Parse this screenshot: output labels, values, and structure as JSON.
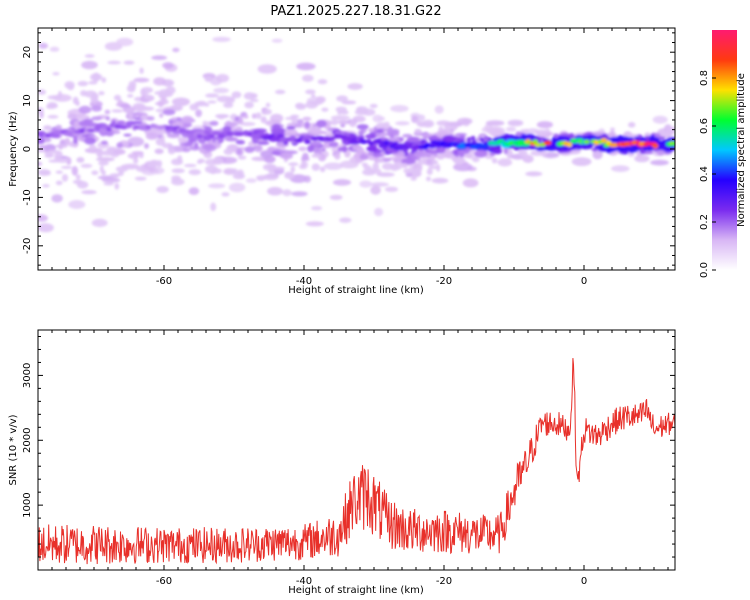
{
  "title": "PAZ1.2025.227.18.31.G22",
  "colormap": [
    "#ffffff",
    "#d8b6f5",
    "#7a2bef",
    "#2500ff",
    "#00c8ff",
    "#00ff30",
    "#ffe000",
    "#ff3a10",
    "#ff1a70"
  ],
  "chart_data": [
    {
      "type": "heatmap",
      "xlabel": "Height of straight line (km)",
      "ylabel": "Frequency (Hz)",
      "xlim": [
        -78,
        13
      ],
      "ylim": [
        -25,
        25
      ],
      "xticks": [
        "-60",
        "-40",
        "-20",
        "0"
      ],
      "yticks": [
        "-20",
        "-10",
        "0",
        "10",
        "20"
      ],
      "ridge": {
        "x": [
          -76,
          -70,
          -65,
          -60,
          -55,
          -50,
          -45,
          -40,
          -35,
          -30,
          -25,
          -20,
          -15,
          -10,
          -5,
          0,
          5,
          10,
          13
        ],
        "freq": [
          3,
          4,
          5,
          4.5,
          3,
          3.2,
          2.5,
          2,
          2.5,
          1.5,
          0,
          1,
          0.5,
          1.5,
          1,
          1.5,
          1,
          1,
          1
        ],
        "spread": [
          6,
          6,
          6,
          5.5,
          5,
          5,
          4.5,
          4,
          3.5,
          3,
          2.5,
          2,
          1.5,
          1,
          1,
          1,
          1,
          1,
          1
        ],
        "intensity": [
          0.2,
          0.2,
          0.2,
          0.2,
          0.2,
          0.2,
          0.25,
          0.25,
          0.25,
          0.3,
          0.3,
          0.35,
          0.45,
          0.6,
          0.9,
          0.6,
          0.95,
          0.95,
          0.6
        ]
      },
      "colorbar": {
        "label": "Normalized spectral amplitude",
        "range": [
          0,
          1
        ],
        "ticks": [
          "0.0",
          "0.2",
          "0.4",
          "0.6",
          "0.8"
        ]
      }
    },
    {
      "type": "line",
      "xlabel": "Height of straight line (km)",
      "ylabel": "SNR (10 * v/v)",
      "xlim": [
        -78,
        13
      ],
      "ylim": [
        0,
        3700
      ],
      "xticks": [
        "-60",
        "-40",
        "-20",
        "0"
      ],
      "yticks": [
        "1000",
        "2000",
        "3000"
      ],
      "series": [
        {
          "color": "#e8302a",
          "x": [
            -78,
            -70,
            -60,
            -50,
            -40,
            -35,
            -33,
            -31,
            -28,
            -25,
            -20,
            -15,
            -12,
            -10,
            -8,
            -6,
            -4,
            -2,
            -1.5,
            -1,
            0,
            2,
            4,
            6,
            8,
            9,
            10,
            12,
            13
          ],
          "baseline": [
            300,
            300,
            300,
            300,
            350,
            450,
            900,
            1000,
            600,
            500,
            500,
            450,
            450,
            1100,
            1600,
            2200,
            2200,
            2100,
            3200,
            1200,
            2100,
            2000,
            2200,
            2300,
            2300,
            2400,
            2100,
            2200,
            2200
          ],
          "noise": [
            450,
            450,
            400,
            400,
            400,
            500,
            700,
            800,
            600,
            500,
            500,
            450,
            450,
            500,
            400,
            300,
            300,
            250,
            300,
            300,
            300,
            300,
            300,
            300,
            300,
            300,
            300,
            250,
            250
          ]
        }
      ]
    }
  ]
}
